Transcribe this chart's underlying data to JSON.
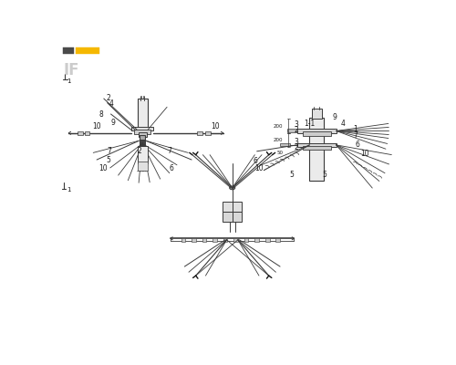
{
  "bg_color": "#ffffff",
  "lc": "#3a3a3a",
  "lc2": "#555555",
  "fc_light": "#f0f0f0",
  "fc_mid": "#d8d8d8",
  "fc_dark": "#b0b0b0",
  "dark_sq": "#4a4a4a",
  "yellow_rect": "#f5b800",
  "fs": 5.5,
  "sfs": 4.5
}
